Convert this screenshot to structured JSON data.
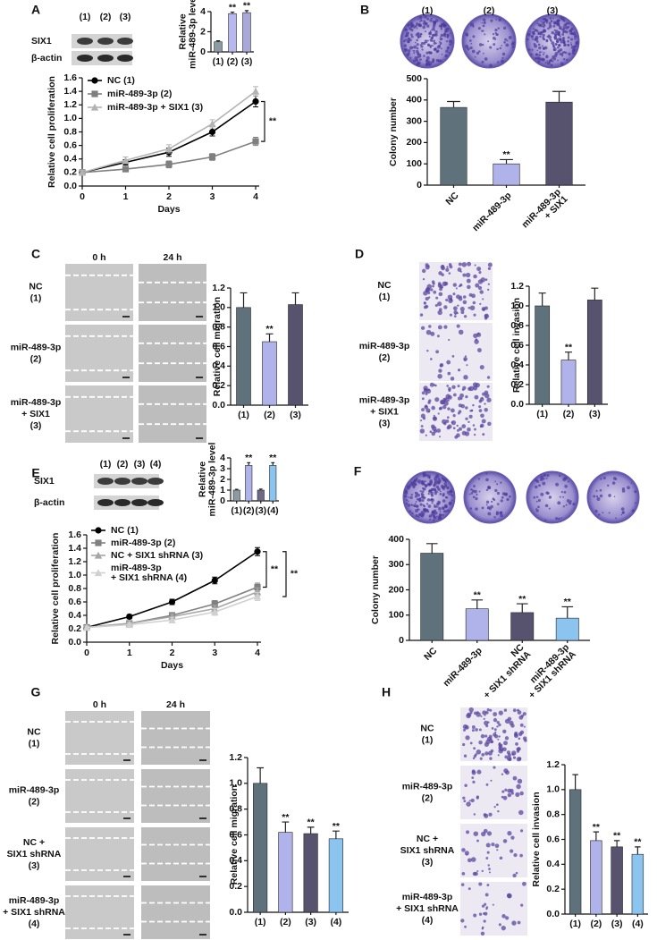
{
  "panel_labels": [
    "A",
    "B",
    "C",
    "D",
    "E",
    "F",
    "G",
    "H"
  ],
  "blots": [
    {
      "lanes": [
        "(1)",
        "(2)",
        "(3)"
      ],
      "rows": [
        "SIX1",
        "β-actin"
      ]
    },
    {
      "lanes": [
        "(1)",
        "(2)",
        "(3)",
        "(4)"
      ],
      "rows": [
        "SIX1",
        "β-actin"
      ]
    }
  ],
  "dish_labels": [
    "(1)",
    "(2)",
    "(3)"
  ],
  "image_grids": [
    {
      "columns": [
        "0 h",
        "24 h"
      ],
      "rows": [
        [
          "NC",
          "(1)"
        ],
        [
          "miR-489-3p",
          "(2)"
        ],
        [
          "miR-489-3p",
          "+ SIX1",
          "(3)"
        ]
      ]
    },
    {
      "rows": [
        [
          "NC",
          "(1)"
        ],
        [
          "miR-489-3p",
          "(2)"
        ],
        [
          "miR-489-3p",
          "+ SIX1",
          "(3)"
        ]
      ]
    },
    {
      "columns": [
        "0 h",
        "24 h"
      ],
      "rows": [
        [
          "NC",
          "(1)"
        ],
        [
          "miR-489-3p",
          "(2)"
        ],
        [
          "NC +",
          "SIX1 shRNA",
          "(3)"
        ],
        [
          "miR-489-3p",
          "+ SIX1 shRNA",
          "(4)"
        ]
      ]
    },
    {
      "rows": [
        [
          "NC",
          "(1)"
        ],
        [
          "miR-489-3p",
          "(2)"
        ],
        [
          "NC +",
          "SIX1 shRNA",
          "(3)"
        ],
        [
          "miR-489-3p",
          "+ SIX1 shRNA",
          "(4)"
        ]
      ]
    }
  ],
  "chart_data": [
    {
      "type": "bar",
      "ylabel": [
        "Relative",
        "miR-489-3p level"
      ],
      "categories": [
        "(1)",
        "(2)",
        "(3)"
      ],
      "values": [
        1,
        3.8,
        3.9
      ],
      "errors": [
        0.1,
        0.15,
        0.2
      ],
      "significance": [
        null,
        "**",
        "**"
      ],
      "colors": [
        "#8c9aa3",
        "#b7b8ee",
        "#a9a8d8"
      ],
      "ylim": [
        0,
        4
      ],
      "yticks": [
        0,
        2,
        4
      ]
    },
    {
      "type": "line",
      "xlabel": "Days",
      "ylabel": "Relative cell proliferation",
      "x": [
        0,
        1,
        2,
        3,
        4
      ],
      "xlim": [
        0,
        4
      ],
      "xticks": [
        0,
        1,
        2,
        3,
        4
      ],
      "ylim": [
        0,
        1.6
      ],
      "yticks": [
        {
          "value": 0,
          "label": "0.0"
        },
        0.2,
        0.4,
        0.6,
        0.8,
        {
          "value": 1,
          "label": "1.0"
        },
        1.2,
        1.4,
        1.6
      ],
      "series": [
        {
          "name": "NC (1)",
          "color": "#000000",
          "marker": "circle",
          "values": [
            0.2,
            0.35,
            0.5,
            0.8,
            1.25
          ],
          "errors": [
            0.03,
            0.04,
            0.06,
            0.06,
            0.08
          ]
        },
        {
          "name": "miR-489-3p (2)",
          "color": "#7f7f7f",
          "marker": "square",
          "values": [
            0.2,
            0.25,
            0.32,
            0.43,
            0.66
          ],
          "errors": [
            0.02,
            0.03,
            0.05,
            0.05,
            0.06
          ]
        },
        {
          "name": "miR-489-3p + SIX1 (3)",
          "color": "#b3b3b3",
          "marker": "triangle",
          "values": [
            0.2,
            0.38,
            0.55,
            0.92,
            1.4
          ],
          "errors": [
            0.03,
            0.05,
            0.06,
            0.06,
            0.07
          ]
        }
      ],
      "brackets": [
        "**"
      ]
    },
    {
      "type": "bar",
      "ylabel": "Colony number",
      "categories": [
        "NC",
        "miR-489-3p",
        [
          "miR-489-3p",
          "+ SIX1"
        ]
      ],
      "values": [
        365,
        100,
        390
      ],
      "errors": [
        28,
        20,
        50
      ],
      "significance": [
        null,
        "**",
        null
      ],
      "colors": [
        "#5f727c",
        "#b0b2ea",
        "#57536f"
      ],
      "ylim": [
        0,
        500
      ],
      "yticks": [
        0,
        100,
        200,
        300,
        400,
        500
      ]
    },
    {
      "type": "bar",
      "ylabel": "Relative cell migration",
      "categories": [
        "(1)",
        "(2)",
        "(3)"
      ],
      "values": [
        1.0,
        0.65,
        1.03
      ],
      "errors": [
        0.15,
        0.08,
        0.12
      ],
      "significance": [
        null,
        "**",
        null
      ],
      "colors": [
        "#5f727c",
        "#b0b2ea",
        "#57536f"
      ],
      "ylim": [
        0,
        1.2
      ],
      "yticks": [
        {
          "value": 0,
          "label": "0.0"
        },
        0.2,
        0.4,
        0.6,
        0.8,
        {
          "value": 1,
          "label": "1.0"
        },
        1.2
      ]
    },
    {
      "type": "bar",
      "ylabel": "Relative cell invasion",
      "categories": [
        "(1)",
        "(2)",
        "(3)"
      ],
      "values": [
        1.0,
        0.45,
        1.06
      ],
      "errors": [
        0.13,
        0.08,
        0.12
      ],
      "significance": [
        null,
        "**",
        null
      ],
      "colors": [
        "#5f727c",
        "#b0b2ea",
        "#57536f"
      ],
      "ylim": [
        0,
        1.2
      ],
      "yticks": [
        {
          "value": 0,
          "label": "0.0"
        },
        0.2,
        0.4,
        0.6,
        0.8,
        {
          "value": 1,
          "label": "1.0"
        },
        1.2
      ]
    },
    {
      "type": "bar",
      "ylabel": [
        "Relative",
        "miR-489-3p level"
      ],
      "categories": [
        "(1)",
        "(2)",
        "(3)",
        "(4)"
      ],
      "values": [
        1,
        3.3,
        1,
        3.3
      ],
      "errors": [
        0.08,
        0.25,
        0.1,
        0.25
      ],
      "significance": [
        null,
        "**",
        null,
        "**"
      ],
      "colors": [
        "#8c9aa3",
        "#b0b2ea",
        "#6c6a86",
        "#8cc4f0"
      ],
      "ylim": [
        0,
        4
      ],
      "yticks": [
        0,
        1,
        2,
        3,
        4
      ]
    },
    {
      "type": "line",
      "xlabel": "Days",
      "ylabel": "Relative cell proliferation",
      "x": [
        0,
        1,
        2,
        3,
        4
      ],
      "xlim": [
        0,
        4
      ],
      "xticks": [
        0,
        1,
        2,
        3,
        4
      ],
      "ylim": [
        0,
        1.6
      ],
      "yticks": [
        {
          "value": 0,
          "label": "0.0"
        },
        0.2,
        0.4,
        0.6,
        0.8,
        {
          "value": 1,
          "label": "1.0"
        },
        1.2,
        1.4,
        1.6
      ],
      "series": [
        {
          "name": "NC (1)",
          "color": "#000000",
          "marker": "circle",
          "values": [
            0.22,
            0.38,
            0.6,
            0.92,
            1.35
          ],
          "errors": [
            0.02,
            0.03,
            0.04,
            0.05,
            0.06
          ]
        },
        {
          "name": "miR-489-3p (2)",
          "color": "#808080",
          "marker": "square",
          "values": [
            0.22,
            0.28,
            0.4,
            0.57,
            0.82
          ],
          "errors": [
            0.02,
            0.03,
            0.04,
            0.05,
            0.06
          ]
        },
        {
          "name": "NC + SIX1 shRNA (3)",
          "color": "#a6a6a6",
          "marker": "triangle",
          "values": [
            0.22,
            0.28,
            0.38,
            0.5,
            0.75
          ],
          "errors": [
            0.02,
            0.03,
            0.04,
            0.05,
            0.06
          ]
        },
        {
          "name": [
            "miR-489-3p",
            "+ SIX1 shRNA (4)"
          ],
          "color": "#d0d0d0",
          "marker": "triangle",
          "values": [
            0.22,
            0.26,
            0.33,
            0.45,
            0.68
          ],
          "errors": [
            0.02,
            0.03,
            0.04,
            0.05,
            0.06
          ]
        }
      ],
      "brackets": [
        "**",
        "**"
      ]
    },
    {
      "type": "bar",
      "ylabel": "Colony number",
      "categories": [
        "NC",
        "miR-489-3p",
        [
          "NC",
          "+ SIX1 shRNA"
        ],
        [
          "miR-489-3p",
          "+ SIX1 shRNA"
        ]
      ],
      "values": [
        345,
        125,
        110,
        88
      ],
      "errors": [
        38,
        35,
        35,
        45
      ],
      "significance": [
        null,
        "**",
        "**",
        "**"
      ],
      "colors": [
        "#5f727c",
        "#b0b2ea",
        "#57536f",
        "#8cc4f0"
      ],
      "ylim": [
        0,
        400
      ],
      "yticks": [
        0,
        100,
        200,
        300,
        400
      ]
    },
    {
      "type": "bar",
      "ylabel": "Relative cell migration",
      "categories": [
        "(1)",
        "(2)",
        "(3)",
        "(4)"
      ],
      "values": [
        1.0,
        0.62,
        0.61,
        0.57
      ],
      "errors": [
        0.12,
        0.08,
        0.05,
        0.06
      ],
      "significance": [
        null,
        "**",
        "**",
        "**"
      ],
      "colors": [
        "#5f727c",
        "#b0b2ea",
        "#57536f",
        "#8cc4f0"
      ],
      "ylim": [
        0,
        1.2
      ],
      "yticks": [
        {
          "value": 0,
          "label": "0.0"
        },
        0.2,
        0.4,
        0.6,
        0.8,
        {
          "value": 1,
          "label": "1.0"
        },
        1.2
      ]
    },
    {
      "type": "bar",
      "ylabel": "Relative cell invasion",
      "categories": [
        "(1)",
        "(2)",
        "(3)",
        "(4)"
      ],
      "values": [
        1.0,
        0.59,
        0.54,
        0.48
      ],
      "errors": [
        0.12,
        0.07,
        0.05,
        0.06
      ],
      "significance": [
        null,
        "**",
        "**",
        "**"
      ],
      "colors": [
        "#5f727c",
        "#b0b2ea",
        "#57536f",
        "#8cc4f0"
      ],
      "ylim": [
        0,
        1.2
      ],
      "yticks": [
        {
          "value": 0,
          "label": "0.0"
        },
        0.2,
        0.4,
        0.6,
        0.8,
        {
          "value": 1,
          "label": "1.0"
        },
        1.2
      ]
    }
  ]
}
